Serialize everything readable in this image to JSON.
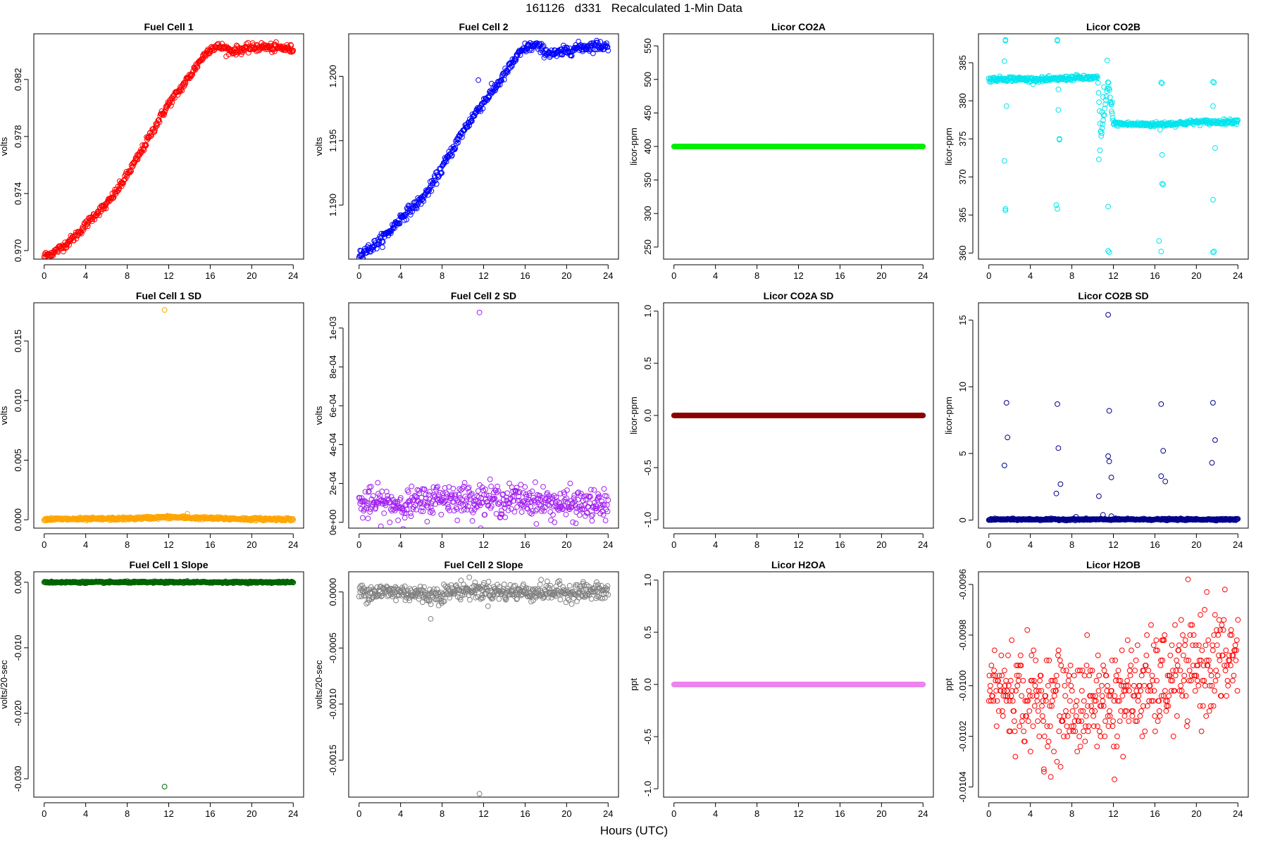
{
  "figure": {
    "title": "161126   d331   Recalculated 1-Min Data",
    "xlabel": "Hours (UTC)"
  },
  "chart_data": [
    {
      "type": "scatter",
      "title": "Fuel Cell 1",
      "xlabel": "",
      "ylabel": "volts",
      "color": "#ff0000",
      "xlim": [
        -1,
        25
      ],
      "ylim": [
        0.9694,
        0.9852
      ],
      "xticks": [
        0,
        4,
        8,
        12,
        16,
        20,
        24
      ],
      "yticks": [
        0.97,
        0.974,
        0.978,
        0.982
      ],
      "ytick_labels": [
        "0.970",
        "0.974",
        "0.978",
        "0.982"
      ],
      "series": [
        {
          "x": [
            0,
            1,
            2,
            3,
            4,
            5,
            6,
            7,
            8,
            9,
            10,
            11,
            12,
            13,
            14,
            15,
            16,
            17,
            18,
            19,
            20,
            21,
            22,
            23,
            24
          ],
          "y": [
            0.9696,
            0.9699,
            0.9704,
            0.971,
            0.9718,
            0.9726,
            0.9732,
            0.9742,
            0.9753,
            0.9765,
            0.9778,
            0.9791,
            0.9803,
            0.9812,
            0.9822,
            0.9833,
            0.9842,
            0.9843,
            0.984,
            0.9841,
            0.9842,
            0.9843,
            0.9842,
            0.9842,
            0.9841
          ],
          "noise": 0.00015
        }
      ],
      "outliers": []
    },
    {
      "type": "scatter",
      "title": "Fuel Cell 2",
      "xlabel": "",
      "ylabel": "volts",
      "color": "#0000ff",
      "xlim": [
        -1,
        25
      ],
      "ylim": [
        1.1858,
        1.2033
      ],
      "xticks": [
        0,
        4,
        8,
        12,
        16,
        20,
        24
      ],
      "yticks": [
        1.19,
        1.195,
        1.2
      ],
      "ytick_labels": [
        "1.190",
        "1.195",
        "1.200"
      ],
      "series": [
        {
          "x": [
            0,
            1,
            2,
            3,
            4,
            5,
            6,
            7,
            8,
            9,
            10,
            11,
            12,
            13,
            14,
            15,
            16,
            17,
            18,
            19,
            20,
            21,
            22,
            23,
            24
          ],
          "y": [
            1.1862,
            1.1866,
            1.1872,
            1.188,
            1.189,
            1.1897,
            1.1904,
            1.1915,
            1.1929,
            1.1943,
            1.1957,
            1.1969,
            1.198,
            1.199,
            1.2001,
            1.2013,
            1.2022,
            1.2024,
            1.2019,
            1.2017,
            1.202,
            1.2022,
            1.2023,
            1.2024,
            1.2023
          ],
          "noise": 0.0002
        }
      ],
      "outliers": [
        {
          "x": 11.5,
          "y": 1.1997
        }
      ]
    },
    {
      "type": "scatter",
      "title": "Licor CO2A",
      "xlabel": "",
      "ylabel": "licor-ppm",
      "color": "#00ee00",
      "xlim": [
        -1,
        25
      ],
      "ylim": [
        232,
        568
      ],
      "xticks": [
        0,
        4,
        8,
        12,
        16,
        20,
        24
      ],
      "yticks": [
        250,
        300,
        350,
        400,
        450,
        500,
        550
      ],
      "ytick_labels": [
        "250",
        "300",
        "350",
        "400",
        "450",
        "500",
        "550"
      ],
      "series": [
        {
          "x": [
            0,
            24
          ],
          "y": [
            400,
            400
          ],
          "noise": 0
        }
      ],
      "outliers": []
    },
    {
      "type": "scatter",
      "title": "Licor CO2B",
      "xlabel": "",
      "ylabel": "licor-ppm",
      "color": "#00e5ee",
      "xlim": [
        -1,
        25
      ],
      "ylim": [
        359.2,
        388.8
      ],
      "xticks": [
        0,
        4,
        8,
        12,
        16,
        20,
        24
      ],
      "yticks": [
        360,
        365,
        370,
        375,
        380,
        385
      ],
      "ytick_labels": [
        "360",
        "365",
        "370",
        "375",
        "380",
        "385"
      ],
      "series": [
        {
          "x": [
            0,
            2,
            4,
            6,
            8,
            10.5,
            10.8,
            11.5,
            12,
            14,
            16,
            18,
            20,
            22,
            24
          ],
          "y": [
            382.8,
            382.9,
            382.8,
            382.8,
            383.0,
            383.0,
            375.0,
            382.5,
            377.0,
            376.9,
            376.9,
            377.0,
            377.2,
            377.2,
            377.3
          ],
          "noise": 0.15
        }
      ],
      "outliers": [
        {
          "x": 1.6,
          "y": 388
        },
        {
          "x": 1.6,
          "y": 387.9
        },
        {
          "x": 6.6,
          "y": 388
        },
        {
          "x": 6.6,
          "y": 387.9
        },
        {
          "x": 1.5,
          "y": 385.2
        },
        {
          "x": 1.7,
          "y": 379.3
        },
        {
          "x": 1.5,
          "y": 372.1
        },
        {
          "x": 1.6,
          "y": 365.8
        },
        {
          "x": 1.6,
          "y": 365.6
        },
        {
          "x": 6.5,
          "y": 366.3
        },
        {
          "x": 6.6,
          "y": 365.8
        },
        {
          "x": 6.7,
          "y": 378.8
        },
        {
          "x": 6.8,
          "y": 375.0
        },
        {
          "x": 6.8,
          "y": 374.9
        },
        {
          "x": 6.7,
          "y": 381.5
        },
        {
          "x": 8.4,
          "y": 383.4
        },
        {
          "x": 11.4,
          "y": 385.3
        },
        {
          "x": 11.5,
          "y": 366.1
        },
        {
          "x": 11.5,
          "y": 360.3
        },
        {
          "x": 11.6,
          "y": 360.1
        },
        {
          "x": 11.9,
          "y": 379.8
        },
        {
          "x": 11.8,
          "y": 379.5
        },
        {
          "x": 16.6,
          "y": 382.4
        },
        {
          "x": 16.7,
          "y": 382.3
        },
        {
          "x": 16.5,
          "y": 376.2
        },
        {
          "x": 16.7,
          "y": 372.9
        },
        {
          "x": 16.7,
          "y": 369.1
        },
        {
          "x": 16.8,
          "y": 369.0
        },
        {
          "x": 16.4,
          "y": 361.6
        },
        {
          "x": 16.6,
          "y": 360.2
        },
        {
          "x": 21.6,
          "y": 382.5
        },
        {
          "x": 21.7,
          "y": 382.4
        },
        {
          "x": 21.6,
          "y": 379.3
        },
        {
          "x": 21.8,
          "y": 373.8
        },
        {
          "x": 21.6,
          "y": 367.0
        },
        {
          "x": 21.7,
          "y": 360.2
        },
        {
          "x": 21.6,
          "y": 360.1
        },
        {
          "x": 10.6,
          "y": 372.3
        },
        {
          "x": 10.7,
          "y": 373.5
        },
        {
          "x": 10.8,
          "y": 376.0
        },
        {
          "x": 10.9,
          "y": 378.5
        },
        {
          "x": 11.0,
          "y": 380.5
        },
        {
          "x": 11.1,
          "y": 381.8
        }
      ]
    },
    {
      "type": "scatter",
      "title": "Fuel Cell 1 SD",
      "xlabel": "",
      "ylabel": "volts",
      "color": "#ffa500",
      "xlim": [
        -1,
        25
      ],
      "ylim": [
        -0.0007,
        0.0182
      ],
      "xticks": [
        0,
        4,
        8,
        12,
        16,
        20,
        24
      ],
      "yticks": [
        0.0,
        0.005,
        0.01,
        0.015
      ],
      "ytick_labels": [
        "0.000",
        "0.005",
        "0.010",
        "0.015"
      ],
      "series": [
        {
          "x": [
            0,
            4,
            8,
            12,
            16,
            20,
            24
          ],
          "y": [
            5e-05,
            6e-05,
            0.0001,
            0.00022,
            0.00012,
            6e-05,
            5e-05
          ],
          "noise": 6e-05
        }
      ],
      "outliers": [
        {
          "x": 11.6,
          "y": 0.0176
        },
        {
          "x": 13.8,
          "y": 0.0005
        }
      ]
    },
    {
      "type": "scatter",
      "title": "Fuel Cell 2 SD",
      "xlabel": "",
      "ylabel": "volts",
      "color": "#a020f0",
      "xlim": [
        -1,
        25
      ],
      "ylim": [
        -3e-05,
        0.00113
      ],
      "xticks": [
        0,
        4,
        8,
        12,
        16,
        20,
        24
      ],
      "yticks": [
        0,
        0.0002,
        0.0004,
        0.0006,
        0.0008,
        0.001
      ],
      "ytick_labels": [
        "0e+00",
        "2e-04",
        "4e-04",
        "6e-04",
        "8e-04",
        "1e-03"
      ],
      "series": [
        {
          "x": [
            0,
            2,
            4,
            6,
            8,
            10,
            12,
            14,
            16,
            18,
            20,
            22,
            24
          ],
          "y": [
            9e-05,
            0.0001,
            9e-05,
            0.0001,
            0.00013,
            0.00012,
            0.00012,
            0.00011,
            0.00012,
            0.0001,
            9e-05,
            9e-05,
            8e-05
          ],
          "noise": 4e-05
        }
      ],
      "outliers": [
        {
          "x": 11.6,
          "y": 0.00108
        }
      ]
    },
    {
      "type": "scatter",
      "title": "Licor CO2A SD",
      "xlabel": "",
      "ylabel": "licor-ppm",
      "color": "#8b0000",
      "xlim": [
        -1,
        25
      ],
      "ylim": [
        -1.08,
        1.08
      ],
      "xticks": [
        0,
        4,
        8,
        12,
        16,
        20,
        24
      ],
      "yticks": [
        -1.0,
        -0.5,
        0.0,
        0.5,
        1.0
      ],
      "ytick_labels": [
        "-1.0",
        "-0.5",
        "0.0",
        "0.5",
        "1.0"
      ],
      "series": [
        {
          "x": [
            0,
            24
          ],
          "y": [
            0,
            0
          ],
          "noise": 0
        }
      ],
      "outliers": []
    },
    {
      "type": "scatter",
      "title": "Licor CO2B SD",
      "xlabel": "",
      "ylabel": "licor-ppm",
      "color": "#00008b",
      "xlim": [
        -1,
        25
      ],
      "ylim": [
        -0.6,
        16.3
      ],
      "xticks": [
        0,
        4,
        8,
        12,
        16,
        20,
        24
      ],
      "yticks": [
        0,
        5,
        10,
        15
      ],
      "ytick_labels": [
        "0",
        "5",
        "10",
        "15"
      ],
      "series": [
        {
          "x": [
            0,
            24
          ],
          "y": [
            0.05,
            0.05
          ],
          "noise": 0.03
        }
      ],
      "outliers": [
        {
          "x": 11.5,
          "y": 15.4
        },
        {
          "x": 1.7,
          "y": 8.8
        },
        {
          "x": 6.6,
          "y": 8.7
        },
        {
          "x": 11.6,
          "y": 8.2
        },
        {
          "x": 16.6,
          "y": 8.7
        },
        {
          "x": 21.6,
          "y": 8.8
        },
        {
          "x": 1.8,
          "y": 6.2
        },
        {
          "x": 21.8,
          "y": 6.0
        },
        {
          "x": 6.7,
          "y": 5.4
        },
        {
          "x": 16.8,
          "y": 5.2
        },
        {
          "x": 1.5,
          "y": 4.1
        },
        {
          "x": 11.5,
          "y": 4.8
        },
        {
          "x": 11.6,
          "y": 4.4
        },
        {
          "x": 21.5,
          "y": 4.3
        },
        {
          "x": 16.6,
          "y": 3.3
        },
        {
          "x": 11.8,
          "y": 3.2
        },
        {
          "x": 17.0,
          "y": 2.9
        },
        {
          "x": 6.9,
          "y": 2.7
        },
        {
          "x": 6.5,
          "y": 2.0
        },
        {
          "x": 10.6,
          "y": 1.8
        },
        {
          "x": 11.0,
          "y": 0.4
        },
        {
          "x": 11.8,
          "y": 0.3
        },
        {
          "x": 8.4,
          "y": 0.25
        }
      ]
    },
    {
      "type": "scatter",
      "title": "Fuel Cell 1 Slope",
      "xlabel": "",
      "ylabel": "volts/20-sec",
      "color": "#006400",
      "xlim": [
        -1,
        25
      ],
      "ylim": [
        -0.0328,
        0.0016
      ],
      "xticks": [
        0,
        4,
        8,
        12,
        16,
        20,
        24
      ],
      "yticks": [
        -0.03,
        -0.02,
        -0.01,
        0.0
      ],
      "ytick_labels": [
        "-0.030",
        "-0.020",
        "-0.010",
        "0.000"
      ],
      "series": [
        {
          "x": [
            0,
            24
          ],
          "y": [
            0,
            0
          ],
          "noise": 6e-05
        }
      ],
      "outliers": [
        {
          "x": 11.6,
          "y": -0.0312
        },
        {
          "x": 13.8,
          "y": 0.0002
        }
      ]
    },
    {
      "type": "scatter",
      "title": "Fuel Cell 2 Slope",
      "xlabel": "",
      "ylabel": "volts/20-sec",
      "color": "#808080",
      "xlim": [
        -1,
        25
      ],
      "ylim": [
        -0.00183,
        0.00018
      ],
      "xticks": [
        0,
        4,
        8,
        12,
        16,
        20,
        24
      ],
      "yticks": [
        -0.0015,
        -0.001,
        -0.0005,
        0
      ],
      "ytick_labels": [
        "-0.0015",
        "-0.0010",
        "-0.0005",
        "0.0000"
      ],
      "series": [
        {
          "x": [
            0,
            4,
            7,
            10,
            14,
            18,
            24
          ],
          "y": [
            0,
            0,
            -3e-05,
            2e-05,
            0,
            0,
            0
          ],
          "noise": 4e-05
        }
      ],
      "outliers": [
        {
          "x": 11.6,
          "y": -0.0018
        },
        {
          "x": 21.6,
          "y": 9e-05
        },
        {
          "x": 6.9,
          "y": -0.00024
        }
      ]
    },
    {
      "type": "scatter",
      "title": "Licor H2OA",
      "xlabel": "",
      "ylabel": "ppt",
      "color": "#ee82ee",
      "xlim": [
        -1,
        25
      ],
      "ylim": [
        -1.08,
        1.08
      ],
      "xticks": [
        0,
        4,
        8,
        12,
        16,
        20,
        24
      ],
      "yticks": [
        -1.0,
        -0.5,
        0.0,
        0.5,
        1.0
      ],
      "ytick_labels": [
        "-1.0",
        "-0.5",
        "0.0",
        "0.5",
        "1.0"
      ],
      "series": [
        {
          "x": [
            0,
            24
          ],
          "y": [
            0,
            0
          ],
          "noise": 0
        }
      ],
      "outliers": []
    },
    {
      "type": "scatter",
      "title": "Licor H2OB",
      "xlabel": "",
      "ylabel": "ppt",
      "color": "#ff0000",
      "xlim": [
        -1,
        25
      ],
      "ylim": [
        -0.01044,
        -0.00955
      ],
      "xticks": [
        0,
        4,
        8,
        12,
        16,
        20,
        24
      ],
      "yticks": [
        -0.0104,
        -0.0102,
        -0.01,
        -0.0098,
        -0.0096
      ],
      "ytick_labels": [
        "-0.0104",
        "-0.0102",
        "-0.0100",
        "-0.0098",
        "-0.0096"
      ],
      "series": [
        {
          "x": [
            0,
            4,
            8,
            12,
            16,
            20,
            24
          ],
          "y": [
            -0.01,
            -0.01005,
            -0.01008,
            -0.01005,
            -0.01,
            -0.00993,
            -0.00988
          ],
          "noise": 0.0001,
          "quantum": 2e-05
        }
      ],
      "outliers": [
        {
          "x": 21,
          "y": -0.00963
        },
        {
          "x": 12.1,
          "y": -0.01037
        },
        {
          "x": 5.3,
          "y": -0.01033
        }
      ]
    }
  ]
}
